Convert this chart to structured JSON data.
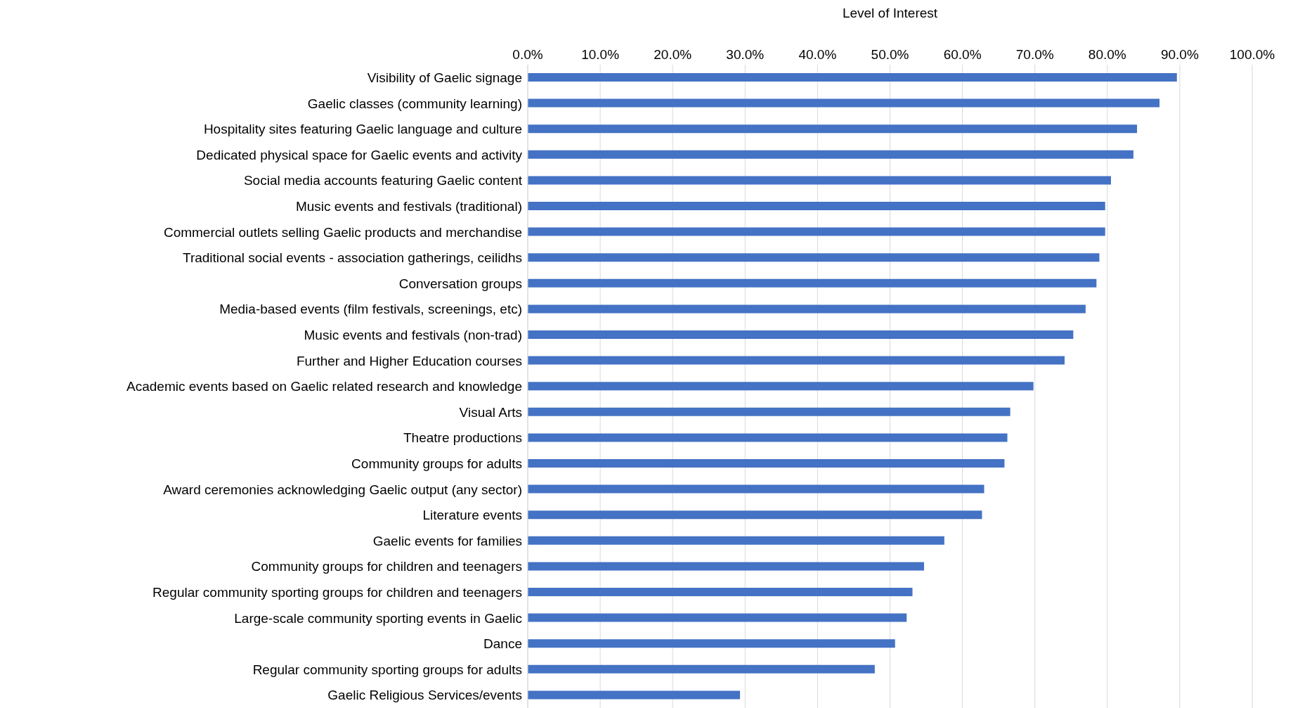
{
  "chart_data": {
    "type": "bar",
    "orientation": "horizontal",
    "xlabel": "Level of Interest",
    "categories": [
      "Visibility of Gaelic signage",
      "Gaelic classes (community learning)",
      "Hospitality sites featuring Gaelic language and culture",
      "Dedicated physical space for Gaelic events and activity",
      "Social media accounts featuring Gaelic content",
      "Music events and festivals (traditional)",
      "Commercial outlets selling Gaelic products and merchandise",
      "Traditional social events - association gatherings, ceilidhs",
      "Conversation groups",
      "Media-based events (film festivals, screenings, etc)",
      "Music events and festivals (non-trad)",
      "Further and Higher Education courses",
      "Academic events based on Gaelic related research and knowledge",
      "Visual Arts",
      "Theatre productions",
      "Community groups for adults",
      "Award ceremonies acknowledging Gaelic output (any sector)",
      "Literature events",
      "Gaelic events for families",
      "Community groups for children and teenagers",
      "Regular community sporting groups for children and teenagers",
      "Large-scale community sporting events in Gaelic",
      "Dance",
      "Regular community sporting groups for adults",
      "Gaelic Religious Services/events"
    ],
    "values": [
      89.6,
      87.2,
      84.1,
      83.6,
      80.5,
      79.7,
      79.7,
      78.9,
      78.5,
      77.0,
      75.3,
      74.1,
      69.8,
      66.6,
      66.2,
      65.8,
      63.0,
      62.7,
      57.5,
      54.7,
      53.1,
      52.3,
      50.7,
      47.9,
      29.3
    ],
    "color": "#4472c4",
    "xlim": [
      0,
      100
    ],
    "xticks": [
      {
        "value": 0,
        "label": "0.0%"
      },
      {
        "value": 10,
        "label": "10.0%"
      },
      {
        "value": 20,
        "label": "20.0%"
      },
      {
        "value": 30,
        "label": "30.0%"
      },
      {
        "value": 40,
        "label": "40.0%"
      },
      {
        "value": 50,
        "label": "50.0%"
      },
      {
        "value": 60,
        "label": "60.0%"
      },
      {
        "value": 70,
        "label": "70.0%"
      },
      {
        "value": 80,
        "label": "80.0%"
      },
      {
        "value": 90,
        "label": "90.0%"
      },
      {
        "value": 100,
        "label": "100.0%"
      }
    ],
    "grid": "x"
  }
}
